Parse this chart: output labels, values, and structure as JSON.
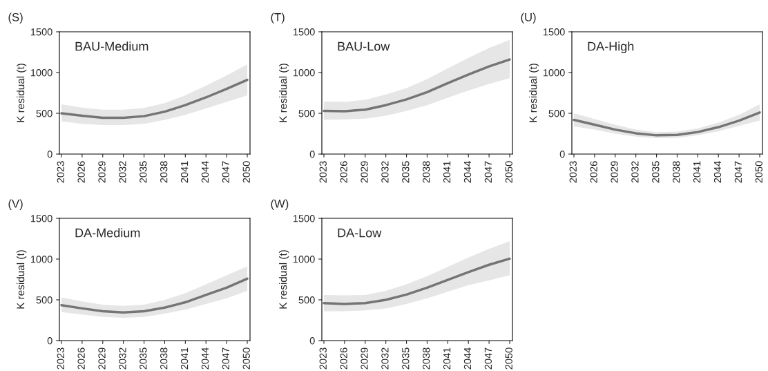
{
  "chart_data": [
    {
      "type": "line",
      "title": "(S)",
      "subtitle": "BAU-Medium",
      "ylabel": "K residual (t)",
      "xlim": [
        2022.7,
        2050.4
      ],
      "xticks": [
        2023,
        2026,
        2029,
        2032,
        2035,
        2038,
        2041,
        2044,
        2047,
        2050
      ],
      "ylim": [
        0,
        1500
      ],
      "yticks": [
        0,
        500,
        1000,
        1500
      ],
      "series": [
        {
          "color": "#757575",
          "x": [
            2023,
            2026,
            2029,
            2032,
            2035,
            2038,
            2041,
            2044,
            2047,
            2050
          ],
          "values": [
            500,
            470,
            445,
            445,
            465,
            520,
            600,
            695,
            800,
            910
          ],
          "lower": [
            400,
            370,
            355,
            355,
            370,
            420,
            480,
            560,
            640,
            720
          ],
          "upper": [
            610,
            570,
            545,
            545,
            565,
            625,
            720,
            840,
            965,
            1100
          ]
        }
      ]
    },
    {
      "type": "line",
      "title": "(T)",
      "subtitle": "BAU-Low",
      "ylabel": "K residual (t)",
      "xlim": [
        2022.7,
        2050.4
      ],
      "xticks": [
        2023,
        2026,
        2029,
        2032,
        2035,
        2038,
        2041,
        2044,
        2047,
        2050
      ],
      "ylim": [
        0,
        1500
      ],
      "yticks": [
        0,
        500,
        1000,
        1500
      ],
      "series": [
        {
          "color": "#757575",
          "x": [
            2023,
            2026,
            2029,
            2032,
            2035,
            2038,
            2041,
            2044,
            2047,
            2050
          ],
          "values": [
            530,
            525,
            545,
            600,
            670,
            760,
            870,
            975,
            1075,
            1160
          ],
          "lower": [
            420,
            425,
            435,
            470,
            530,
            600,
            690,
            780,
            860,
            930
          ],
          "upper": [
            645,
            640,
            665,
            730,
            810,
            920,
            1050,
            1180,
            1300,
            1400
          ]
        }
      ]
    },
    {
      "type": "line",
      "title": "(U)",
      "subtitle": "DA-High",
      "ylabel": "K residual (t)",
      "xlim": [
        2022.7,
        2050.4
      ],
      "xticks": [
        2023,
        2026,
        2029,
        2032,
        2035,
        2038,
        2041,
        2044,
        2047,
        2050
      ],
      "ylim": [
        0,
        1500
      ],
      "yticks": [
        0,
        500,
        1000,
        1500
      ],
      "series": [
        {
          "color": "#757575",
          "x": [
            2023,
            2026,
            2029,
            2032,
            2035,
            2038,
            2041,
            2044,
            2047,
            2050
          ],
          "values": [
            420,
            360,
            300,
            255,
            230,
            235,
            270,
            330,
            410,
            510
          ],
          "lower": [
            340,
            300,
            250,
            215,
            195,
            200,
            230,
            280,
            345,
            410
          ],
          "upper": [
            500,
            430,
            360,
            300,
            270,
            275,
            315,
            385,
            480,
            610
          ]
        }
      ]
    },
    {
      "type": "line",
      "title": "(V)",
      "subtitle": "DA-Medium",
      "ylabel": "K residual (t)",
      "xlim": [
        2022.7,
        2050.4
      ],
      "xticks": [
        2023,
        2026,
        2029,
        2032,
        2035,
        2038,
        2041,
        2044,
        2047,
        2050
      ],
      "ylim": [
        0,
        1500
      ],
      "yticks": [
        0,
        500,
        1000,
        1500
      ],
      "series": [
        {
          "color": "#757575",
          "x": [
            2023,
            2026,
            2029,
            2032,
            2035,
            2038,
            2041,
            2044,
            2047,
            2050
          ],
          "values": [
            435,
            395,
            360,
            345,
            360,
            405,
            470,
            560,
            650,
            760
          ],
          "lower": [
            350,
            320,
            290,
            280,
            290,
            330,
            380,
            450,
            520,
            610
          ],
          "upper": [
            530,
            480,
            440,
            425,
            440,
            500,
            580,
            690,
            800,
            910
          ]
        }
      ]
    },
    {
      "type": "line",
      "title": "(W)",
      "subtitle": "DA-Low",
      "ylabel": "K residual (t)",
      "xlim": [
        2022.7,
        2050.4
      ],
      "xticks": [
        2023,
        2026,
        2029,
        2032,
        2035,
        2038,
        2041,
        2044,
        2047,
        2050
      ],
      "ylim": [
        0,
        1500
      ],
      "yticks": [
        0,
        500,
        1000,
        1500
      ],
      "series": [
        {
          "color": "#757575",
          "x": [
            2023,
            2026,
            2029,
            2032,
            2035,
            2038,
            2041,
            2044,
            2047,
            2050
          ],
          "values": [
            460,
            450,
            460,
            500,
            565,
            650,
            745,
            840,
            930,
            1005
          ],
          "lower": [
            360,
            360,
            370,
            395,
            450,
            520,
            600,
            680,
            740,
            800
          ],
          "upper": [
            560,
            555,
            560,
            610,
            690,
            790,
            905,
            1020,
            1125,
            1220
          ]
        }
      ]
    }
  ]
}
